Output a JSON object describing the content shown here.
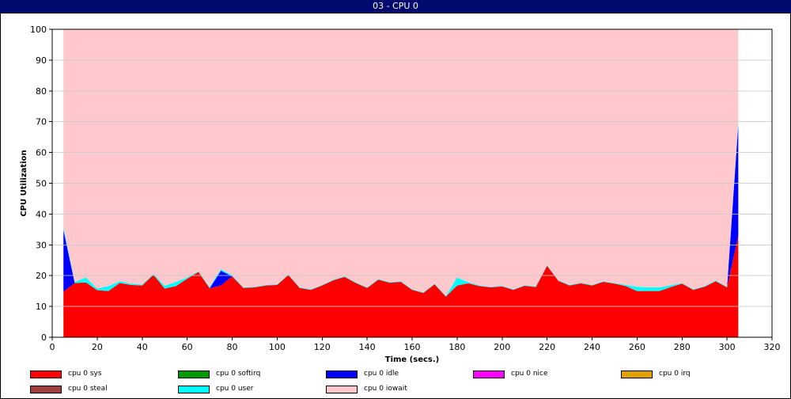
{
  "window": {
    "title": "03 - CPU 0"
  },
  "chart_data": {
    "type": "area",
    "stacked": true,
    "xlabel": "Time (secs.)",
    "ylabel": "CPU Utilization",
    "xlim": [
      0,
      320
    ],
    "ylim": [
      0,
      100
    ],
    "xticks": [
      0,
      20,
      40,
      60,
      80,
      100,
      120,
      140,
      160,
      180,
      200,
      220,
      240,
      260,
      280,
      300,
      320
    ],
    "yticks": [
      0,
      10,
      20,
      30,
      40,
      50,
      60,
      70,
      80,
      90,
      100
    ],
    "grid": "horizontal",
    "legend_position": "bottom",
    "x": [
      5,
      10,
      15,
      20,
      25,
      30,
      35,
      40,
      45,
      50,
      55,
      60,
      65,
      70,
      75,
      80,
      85,
      90,
      95,
      100,
      105,
      110,
      115,
      120,
      125,
      130,
      135,
      140,
      145,
      150,
      155,
      160,
      165,
      170,
      175,
      180,
      185,
      190,
      195,
      200,
      205,
      210,
      215,
      220,
      225,
      230,
      235,
      240,
      245,
      250,
      255,
      260,
      265,
      270,
      275,
      280,
      285,
      290,
      295,
      300,
      305
    ],
    "series": [
      {
        "name": "cpu 0 sys",
        "color": "#ff0000",
        "values": [
          14.8,
          17.6,
          17.8,
          15.3,
          15.0,
          17.6,
          17.0,
          16.8,
          20.3,
          15.8,
          16.6,
          19.0,
          21.2,
          15.9,
          16.8,
          19.8,
          16.0,
          16.2,
          16.8,
          17.0,
          20.2,
          16.0,
          15.4,
          16.8,
          18.5,
          19.6,
          17.6,
          16.0,
          18.7,
          17.7,
          18.0,
          15.4,
          14.4,
          17.2,
          13.2,
          16.8,
          17.5,
          16.6,
          16.2,
          16.5,
          15.4,
          16.7,
          16.3,
          23.2,
          18.3,
          16.8,
          17.5,
          16.8,
          18.0,
          17.4,
          16.6,
          15.0,
          15.0,
          15.0,
          16.3,
          17.4,
          15.4,
          16.4,
          18.2,
          16.2,
          33.0
        ]
      },
      {
        "name": "cpu 0 softirq",
        "color": "#009900",
        "values": [
          0,
          0,
          0,
          0,
          0,
          0,
          0,
          0,
          0,
          0,
          0,
          0,
          0,
          0,
          0,
          0,
          0,
          0,
          0,
          0,
          0,
          0,
          0,
          0,
          0,
          0,
          0,
          0,
          0,
          0,
          0,
          0,
          0,
          0,
          0,
          0,
          0,
          0,
          0,
          0,
          0,
          0,
          0,
          0,
          0,
          0,
          0,
          0,
          0,
          0,
          0,
          0,
          0,
          0,
          0,
          0,
          0,
          0,
          0,
          0,
          0
        ]
      },
      {
        "name": "cpu 0 idle",
        "color": "#0000ff",
        "values": [
          20.0,
          0,
          0,
          0,
          0,
          0,
          0,
          0,
          0,
          0,
          0,
          0,
          0,
          0,
          4.8,
          0,
          0,
          0,
          0,
          0,
          0,
          0,
          0,
          0,
          0,
          0,
          0,
          0,
          0,
          0,
          0,
          0,
          0,
          0,
          0,
          0,
          0,
          0,
          0,
          0,
          0,
          0,
          0,
          0,
          0,
          0,
          0,
          0,
          0,
          0,
          0,
          0,
          0,
          0,
          0,
          0,
          0,
          0,
          0,
          0,
          36.0
        ]
      },
      {
        "name": "cpu 0 nice",
        "color": "#ff00ff",
        "values": [
          0,
          0,
          0,
          0,
          0,
          0,
          0,
          0,
          0,
          0,
          0,
          0,
          0,
          0,
          0,
          0,
          0,
          0,
          0,
          0,
          0,
          0,
          0,
          0,
          0,
          0,
          0,
          0,
          0,
          0,
          0,
          0,
          0,
          0,
          0,
          0,
          0,
          0,
          0,
          0,
          0,
          0,
          0,
          0,
          0,
          0,
          0,
          0,
          0,
          0,
          0,
          0,
          0,
          0,
          0,
          0,
          0,
          0,
          0,
          0,
          0
        ]
      },
      {
        "name": "cpu 0 irq",
        "color": "#e0a000",
        "values": [
          0,
          0,
          0,
          0,
          0,
          0,
          0,
          0,
          0,
          0,
          0,
          0,
          0,
          0,
          0,
          0,
          0,
          0,
          0,
          0,
          0,
          0,
          0,
          0,
          0,
          0,
          0,
          0,
          0,
          0,
          0,
          0,
          0,
          0,
          0,
          0,
          0,
          0,
          0,
          0,
          0,
          0,
          0,
          0,
          0,
          0,
          0,
          0,
          0,
          0,
          0,
          0,
          0,
          0,
          0,
          0,
          0,
          0,
          0,
          0,
          0
        ]
      },
      {
        "name": "cpu 0 steal",
        "color": "#a04040",
        "values": [
          0,
          0,
          0,
          0,
          0,
          0,
          0,
          0,
          0,
          0,
          0,
          0,
          0,
          0,
          0,
          0,
          0,
          0,
          0,
          0,
          0,
          0,
          0,
          0,
          0,
          0,
          0,
          0,
          0,
          0,
          0,
          0,
          0,
          0,
          0,
          0,
          0,
          0,
          0,
          0,
          0,
          0,
          0,
          0,
          0,
          0,
          0,
          0,
          0,
          0,
          0,
          0,
          0,
          0,
          0,
          0,
          0,
          0,
          0,
          0,
          0
        ]
      },
      {
        "name": "cpu 0 user",
        "color": "#00ffff",
        "values": [
          0.8,
          0.4,
          1.6,
          0.5,
          1.6,
          0.6,
          0.4,
          0.3,
          0.3,
          0.9,
          1.4,
          0.4,
          0.2,
          0.4,
          0.5,
          0.3,
          0.2,
          0.2,
          0.2,
          0.2,
          0.2,
          0.2,
          0.2,
          0.2,
          0.2,
          0.2,
          0.2,
          0.2,
          0.2,
          0.2,
          0.2,
          0.2,
          0.2,
          0.2,
          0.2,
          2.6,
          0.4,
          0.2,
          0.2,
          0.2,
          0.2,
          0.2,
          0.2,
          0.2,
          0.2,
          0.2,
          0.2,
          0.2,
          0.2,
          0.2,
          0.4,
          1.4,
          1.2,
          1.2,
          0.6,
          0.2,
          0.2,
          0.2,
          0.2,
          0.2,
          1.0
        ]
      },
      {
        "name": "cpu 0 iowait",
        "color": "#ffc8cc",
        "values": [
          64.4,
          82.0,
          80.6,
          84.2,
          83.4,
          81.8,
          82.6,
          82.9,
          79.4,
          83.3,
          82.0,
          80.6,
          78.6,
          83.7,
          77.9,
          79.9,
          83.8,
          83.6,
          83.0,
          82.8,
          79.6,
          83.8,
          84.4,
          83.0,
          81.3,
          80.2,
          82.2,
          83.8,
          81.1,
          82.1,
          81.8,
          84.4,
          85.4,
          82.6,
          86.6,
          80.6,
          82.1,
          83.2,
          83.6,
          83.3,
          84.4,
          83.1,
          83.5,
          76.6,
          81.5,
          83.0,
          82.3,
          83.0,
          81.8,
          82.4,
          83.0,
          83.6,
          83.8,
          83.8,
          83.1,
          82.4,
          84.4,
          83.4,
          81.6,
          83.6,
          30.0
        ]
      }
    ]
  }
}
